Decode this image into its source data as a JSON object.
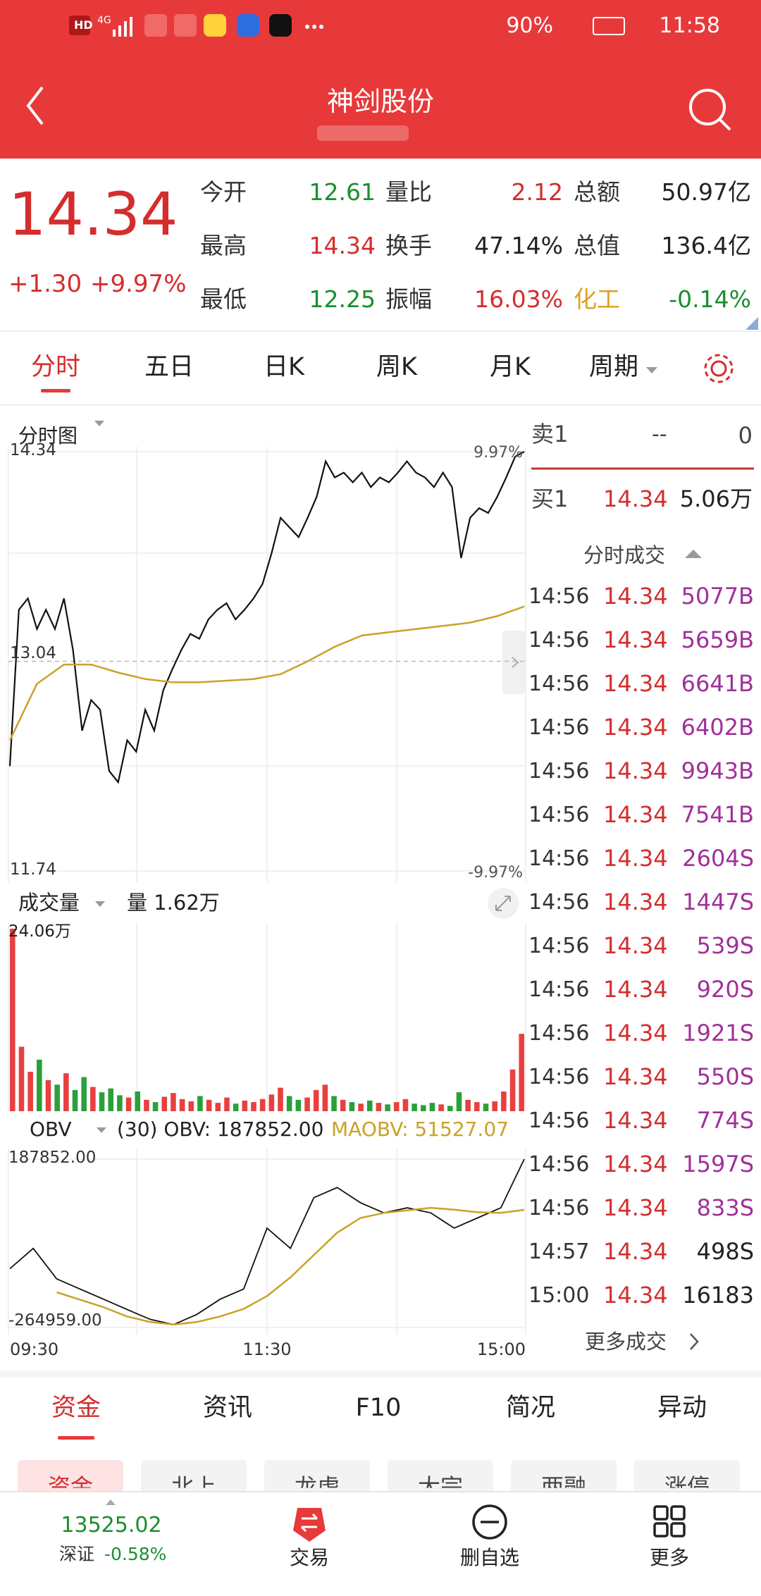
{
  "status_bar": {
    "hd": "HD",
    "network": "4G",
    "battery": "90%",
    "time": "11:58"
  },
  "header": {
    "title": "神剑股份"
  },
  "quote": {
    "price": "14.34",
    "change": "+1.30",
    "change_pct": "+9.97%",
    "stats": [
      [
        {
          "label": "今开",
          "value": "12.61",
          "color": "#1a8f2e"
        },
        {
          "label": "量比",
          "value": "2.12",
          "color": "#d42d2d"
        },
        {
          "label": "总额",
          "value": "50.97亿",
          "color": "#222222"
        }
      ],
      [
        {
          "label": "最高",
          "value": "14.34",
          "color": "#d42d2d"
        },
        {
          "label": "换手",
          "value": "47.14%",
          "color": "#222222"
        },
        {
          "label": "总值",
          "value": "136.4亿",
          "color": "#222222"
        }
      ],
      [
        {
          "label": "最低",
          "value": "12.25",
          "color": "#1a8f2e"
        },
        {
          "label": "振幅",
          "value": "16.03%",
          "color": "#d42d2d"
        },
        {
          "label": "化工",
          "value": "-0.14%",
          "color": "#1a8f2e",
          "label_color": "#e0a020"
        }
      ]
    ]
  },
  "tabs": {
    "items": [
      "分时",
      "五日",
      "日K",
      "周K",
      "月K",
      "周期"
    ],
    "active": 0
  },
  "intraday": {
    "title": "分时图",
    "ylim": [
      11.74,
      14.34
    ],
    "yticks": [
      14.34,
      13.04,
      11.74
    ],
    "pct_top": "9.97%",
    "pct_bottom": "-9.97%",
    "price": [
      12.39,
      13.36,
      13.43,
      13.24,
      13.36,
      13.24,
      13.43,
      13.11,
      12.61,
      12.8,
      12.74,
      12.36,
      12.29,
      12.55,
      12.48,
      12.74,
      12.61,
      12.86,
      12.99,
      13.11,
      13.21,
      13.18,
      13.3,
      13.36,
      13.4,
      13.3,
      13.36,
      13.43,
      13.52,
      13.71,
      13.93,
      13.87,
      13.81,
      13.93,
      14.06,
      14.28,
      14.18,
      14.21,
      14.15,
      14.21,
      14.12,
      14.18,
      14.15,
      14.21,
      14.28,
      14.21,
      14.18,
      14.12,
      14.21,
      14.12,
      13.68,
      13.93,
      13.99,
      13.96,
      14.06,
      14.18,
      14.31,
      14.34
    ],
    "avg": [
      12.55,
      12.9,
      13.02,
      13.02,
      12.97,
      12.93,
      12.91,
      12.91,
      12.92,
      12.93,
      12.96,
      13.04,
      13.13,
      13.2,
      13.22,
      13.24,
      13.26,
      13.28,
      13.32,
      13.38
    ],
    "price_color": "#111111",
    "avg_color": "#c9a227"
  },
  "volume": {
    "title": "成交量",
    "current_label": "量 1.62万",
    "max_label": "24.06万",
    "ylim": [
      0,
      24.06
    ],
    "values": [
      24.06,
      8.5,
      5.2,
      6.8,
      4.1,
      3.5,
      5.0,
      2.8,
      4.5,
      3.2,
      2.5,
      3.0,
      2.1,
      1.8,
      2.6,
      1.5,
      1.2,
      1.9,
      2.4,
      1.6,
      1.3,
      2.0,
      1.5,
      1.1,
      1.8,
      1.0,
      1.4,
      1.2,
      1.6,
      2.2,
      3.1,
      2.0,
      1.5,
      1.8,
      2.8,
      3.5,
      2.0,
      1.5,
      1.2,
      1.0,
      1.4,
      1.1,
      0.9,
      1.2,
      1.6,
      1.0,
      0.8,
      1.1,
      0.9,
      0.7,
      2.5,
      1.5,
      1.2,
      1.0,
      1.3,
      2.6,
      5.5,
      10.2
    ],
    "up_color": "#e84040",
    "down_color": "#2aa03a"
  },
  "obv": {
    "title": "OBV",
    "param": "(30) OBV: 187852.00",
    "ma_label": "MAOBV: 51527.07",
    "ylim": [
      -264959,
      187852
    ],
    "yticks": [
      {
        "value": 187852,
        "label": "187852.00"
      },
      {
        "value": -264959,
        "label": "-264959.00"
      }
    ],
    "values": [
      -106800,
      -52200,
      -134000,
      -161300,
      -188600,
      -216000,
      -243000,
      -257000,
      -229500,
      -188600,
      -161300,
      2300,
      -52200,
      84200,
      111500,
      70500,
      43300,
      56900,
      43300,
      2300,
      29600,
      56900,
      187852
    ],
    "ma": [
      null,
      null,
      -170000,
      -190000,
      -210000,
      -235000,
      -250000,
      -257000,
      -250000,
      -235000,
      -215000,
      -180000,
      -130000,
      -70000,
      -10000,
      29600,
      43300,
      50000,
      56900,
      52000,
      45000,
      43300,
      51527
    ],
    "color": "#111111",
    "ma_color": "#c9a227",
    "x_labels": [
      "09:30",
      "11:30",
      "15:00"
    ]
  },
  "order_book": {
    "sell": {
      "label": "卖1",
      "price": "--",
      "volume": "0"
    },
    "buy": {
      "label": "买1",
      "price": "14.34",
      "volume": "5.06万"
    }
  },
  "trades": {
    "title": "分时成交",
    "more": "更多成交",
    "rows": [
      {
        "time": "14:56",
        "price": "14.34",
        "volume": "5077B",
        "color": "#a0309a"
      },
      {
        "time": "14:56",
        "price": "14.34",
        "volume": "5659B",
        "color": "#a0309a"
      },
      {
        "time": "14:56",
        "price": "14.34",
        "volume": "6641B",
        "color": "#a0309a"
      },
      {
        "time": "14:56",
        "price": "14.34",
        "volume": "6402B",
        "color": "#a0309a"
      },
      {
        "time": "14:56",
        "price": "14.34",
        "volume": "9943B",
        "color": "#a0309a"
      },
      {
        "time": "14:56",
        "price": "14.34",
        "volume": "7541B",
        "color": "#a0309a"
      },
      {
        "time": "14:56",
        "price": "14.34",
        "volume": "2604S",
        "color": "#a0309a"
      },
      {
        "time": "14:56",
        "price": "14.34",
        "volume": "1447S",
        "color": "#a0309a"
      },
      {
        "time": "14:56",
        "price": "14.34",
        "volume": "539S",
        "color": "#a0309a"
      },
      {
        "time": "14:56",
        "price": "14.34",
        "volume": "920S",
        "color": "#a0309a"
      },
      {
        "time": "14:56",
        "price": "14.34",
        "volume": "1921S",
        "color": "#a0309a"
      },
      {
        "time": "14:56",
        "price": "14.34",
        "volume": "550S",
        "color": "#a0309a"
      },
      {
        "time": "14:56",
        "price": "14.34",
        "volume": "774S",
        "color": "#a0309a"
      },
      {
        "time": "14:56",
        "price": "14.34",
        "volume": "1597S",
        "color": "#a0309a"
      },
      {
        "time": "14:56",
        "price": "14.34",
        "volume": "833S",
        "color": "#a0309a"
      },
      {
        "time": "14:57",
        "price": "14.34",
        "volume": "498S",
        "color": "#222222"
      },
      {
        "time": "15:00",
        "price": "14.34",
        "volume": "16183",
        "color": "#222222"
      }
    ]
  },
  "bottom_tabs": {
    "items": [
      "资金",
      "资讯",
      "F10",
      "简况",
      "异动"
    ],
    "active": 0
  },
  "sub_tabs": [
    "资金",
    "北上",
    "龙虎",
    "大宗",
    "两融",
    "涨停"
  ],
  "nav": {
    "index_value": "13525.02",
    "index_name": "深证",
    "index_change": "-0.58%",
    "items": [
      "交易",
      "删自选",
      "更多"
    ]
  }
}
